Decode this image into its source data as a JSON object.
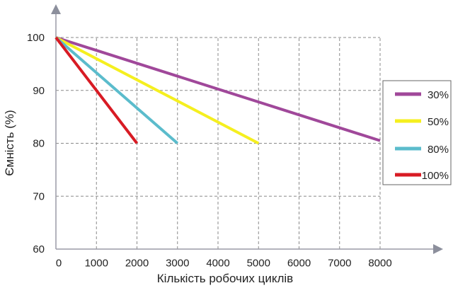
{
  "chart_data": {
    "type": "line",
    "xlabel": "Кількість робочих циклів",
    "ylabel": "Ємність (%)",
    "xlim": [
      0,
      8000
    ],
    "ylim": [
      60,
      100
    ],
    "x_ticks": [
      "0",
      "1000",
      "2000",
      "3000",
      "4000",
      "5000",
      "6000",
      "7000",
      "8000"
    ],
    "y_ticks": [
      "60",
      "70",
      "80",
      "90",
      "100"
    ],
    "grid": true,
    "legend_position": "right",
    "series": [
      {
        "name": "30%",
        "color": "#a0489a",
        "points": [
          [
            0,
            100
          ],
          [
            8000,
            80.5
          ]
        ]
      },
      {
        "name": "50%",
        "color": "#f5ef1f",
        "points": [
          [
            0,
            100
          ],
          [
            5000,
            80
          ]
        ]
      },
      {
        "name": "80%",
        "color": "#5bbccc",
        "points": [
          [
            0,
            100
          ],
          [
            3000,
            80
          ]
        ]
      },
      {
        "name": "100%",
        "color": "#d81b24",
        "points": [
          [
            0,
            100
          ],
          [
            2000,
            80
          ]
        ]
      }
    ]
  }
}
